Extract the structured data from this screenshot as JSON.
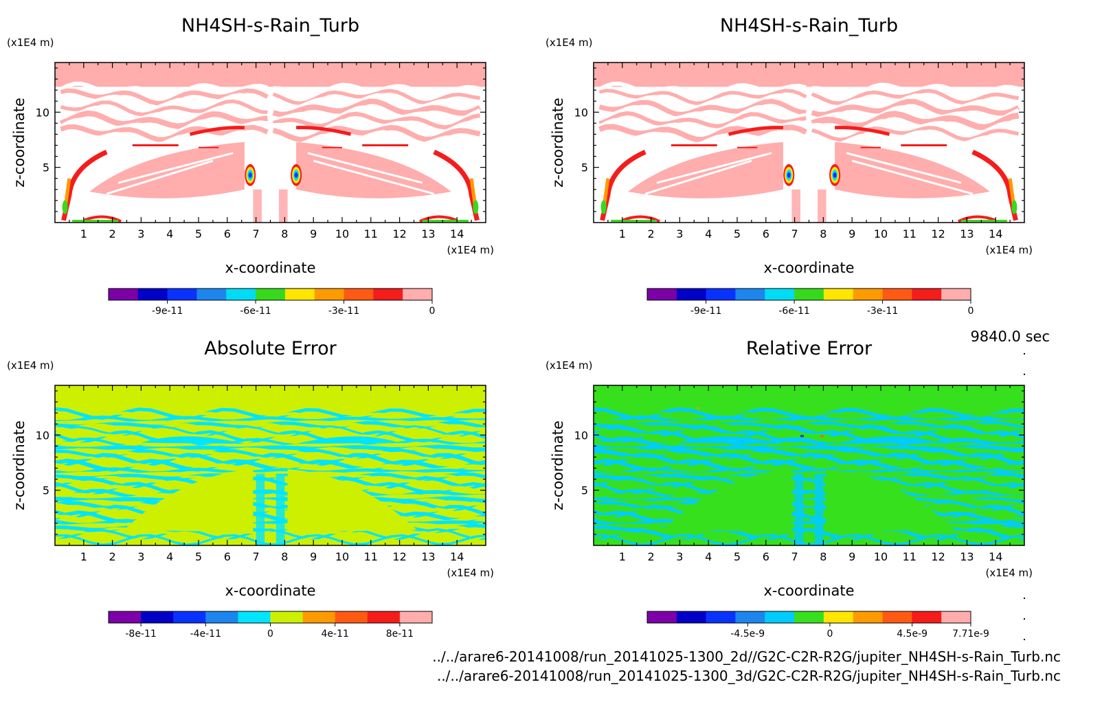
{
  "timestamp": "9840.0 sec",
  "file_paths": [
    "../../arare6-20141008/run_20141025-1300_2d//G2C-C2R-R2G/jupiter_NH4SH-s-Rain_Turb.nc",
    "../../arare6-20141008/run_20141025-1300_3d/G2C-C2R-R2G/jupiter_NH4SH-s-Rain_Turb.nc"
  ],
  "colors": {
    "frame": "#000000",
    "ramp_11": [
      "#7b00a8",
      "#0000c8",
      "#0a32ff",
      "#1c86ee",
      "#00dcf5",
      "#37d91c",
      "#ffe600",
      "#ff9a00",
      "#ff5a14",
      "#f51c1c",
      "#ffadad"
    ],
    "ramp_10": [
      "#7b00a8",
      "#0000c8",
      "#0a32ff",
      "#1c86ee",
      "#00e5ff",
      "#cdf000",
      "#ff9a00",
      "#ff5a14",
      "#f51c1c",
      "#ffadad"
    ],
    "ramp_10b": [
      "#7b00a8",
      "#0000c8",
      "#0a32ff",
      "#1c86ee",
      "#00ccff",
      "#37e01c",
      "#ffe600",
      "#ff9a00",
      "#ff5a14",
      "#f51c1c",
      "#ffadad"
    ]
  },
  "chart_data": [
    {
      "type": "heatmap",
      "title": "NH4SH-s-Rain_Turb",
      "xlabel": "x-coordinate",
      "ylabel": "z-coordinate",
      "x_unit": "(x1E4 m)",
      "y_unit": "(x1E4 m)",
      "xlim": [
        0,
        15
      ],
      "ylim": [
        0,
        14.5
      ],
      "x_ticks": [
        "1",
        "2",
        "3",
        "4",
        "5",
        "6",
        "7",
        "8",
        "9",
        "10",
        "11",
        "12",
        "13",
        "14"
      ],
      "y_ticks": [
        "5",
        "10"
      ],
      "colorbar": {
        "n_levels": 11,
        "tick_labels": [
          "-9e-11",
          "-6e-11",
          "-3e-11",
          "0"
        ],
        "tick_values": [
          -9e-11,
          -6e-11,
          -3e-11,
          0
        ],
        "range": [
          -1.1e-10,
          0
        ]
      },
      "field_description_values": {
        "background_level": 0,
        "min_level": -1.1e-10
      }
    },
    {
      "type": "heatmap",
      "title": "NH4SH-s-Rain_Turb",
      "xlabel": "x-coordinate",
      "ylabel": "z-coordinate",
      "x_unit": "(x1E4 m)",
      "y_unit": "(x1E4 m)",
      "xlim": [
        0,
        15
      ],
      "ylim": [
        0,
        14.5
      ],
      "x_ticks": [
        "1",
        "2",
        "3",
        "4",
        "5",
        "6",
        "7",
        "8",
        "9",
        "10",
        "11",
        "12",
        "13",
        "14"
      ],
      "y_ticks": [
        "5",
        "10"
      ],
      "colorbar": {
        "n_levels": 11,
        "tick_labels": [
          "-9e-11",
          "-6e-11",
          "-3e-11",
          "0"
        ],
        "tick_values": [
          -9e-11,
          -6e-11,
          -3e-11,
          0
        ],
        "range": [
          -1.1e-10,
          0
        ]
      },
      "field_description_values": {
        "background_level": 0,
        "min_level": -1.1e-10
      }
    },
    {
      "type": "heatmap",
      "title": "Absolute Error",
      "xlabel": "x-coordinate",
      "ylabel": "z-coordinate",
      "x_unit": "(x1E4 m)",
      "y_unit": "(x1E4 m)",
      "xlim": [
        0,
        15
      ],
      "ylim": [
        0,
        14.5
      ],
      "x_ticks": [
        "1",
        "2",
        "3",
        "4",
        "5",
        "6",
        "7",
        "8",
        "9",
        "10",
        "11",
        "12",
        "13",
        "14"
      ],
      "y_ticks": [
        "5",
        "10"
      ],
      "colorbar": {
        "n_levels": 10,
        "tick_labels": [
          "-8e-11",
          "-4e-11",
          "0",
          "4e-11",
          "8e-11"
        ],
        "tick_values": [
          -8e-11,
          -4e-11,
          0,
          4e-11,
          8e-11
        ],
        "range": [
          -1e-10,
          1e-10
        ]
      },
      "field_description_values": {
        "dominant_level": 0
      }
    },
    {
      "type": "heatmap",
      "title": "Relative Error",
      "xlabel": "x-coordinate",
      "ylabel": "z-coordinate",
      "x_unit": "(x1E4 m)",
      "y_unit": "(x1E4 m)",
      "xlim": [
        0,
        15
      ],
      "ylim": [
        0,
        14.5
      ],
      "x_ticks": [
        "1",
        "2",
        "3",
        "4",
        "5",
        "6",
        "7",
        "8",
        "9",
        "10",
        "11",
        "12",
        "13",
        "14"
      ],
      "y_ticks": [
        "5",
        "10"
      ],
      "colorbar": {
        "n_levels": 11,
        "tick_labels": [
          "-4.5e-9",
          "0",
          "4.5e-9",
          "7.71e-9"
        ],
        "tick_values": [
          -4.5e-09,
          0,
          4.5e-09,
          7.71e-09
        ],
        "range": [
          -1e-08,
          7.71e-09
        ]
      },
      "field_description_values": {
        "dominant_level": 0
      }
    }
  ]
}
